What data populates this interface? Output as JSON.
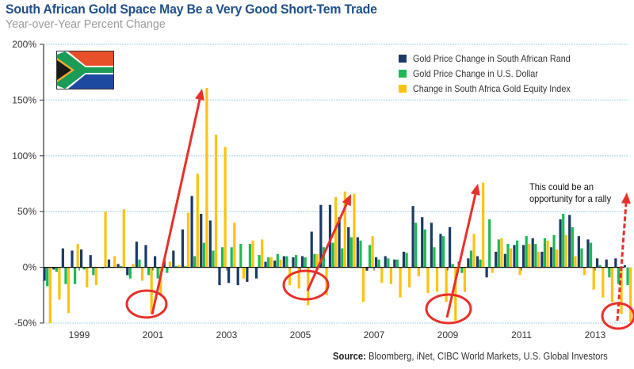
{
  "chart_data": {
    "type": "bar",
    "title": "South African Gold Space May Be a Very Good Short-Tem Trade",
    "subtitle": "Year-over-Year Percent Change",
    "xlabel": "",
    "ylabel": "",
    "ylim": [
      -50,
      200
    ],
    "yticks": [
      "200%",
      "150%",
      "100%",
      "50%",
      "0%",
      "-50%"
    ],
    "ytick_values": [
      200,
      150,
      100,
      50,
      0,
      -50
    ],
    "xticks": [
      "1999",
      "2001",
      "2003",
      "2005",
      "2007",
      "2009",
      "2011",
      "2013"
    ],
    "x_start": 1998.0,
    "periods_per_year": 4,
    "grid": true,
    "legend_position": "top-right",
    "series": [
      {
        "name": "Gold Price Change in South African Rand",
        "color": "#1b3a66",
        "values": [
          -12,
          -2,
          17,
          15,
          16,
          11,
          0,
          7,
          3,
          -7,
          23,
          20,
          10,
          7,
          15,
          34,
          64,
          48,
          42,
          -16,
          -14,
          -16,
          -13,
          -10,
          5,
          6,
          10,
          9,
          10,
          32,
          56,
          56,
          45,
          36,
          27,
          -3,
          9,
          10,
          7,
          14,
          55,
          45,
          40,
          30,
          36,
          5,
          8,
          10,
          -9,
          14,
          12,
          20,
          20,
          26,
          14,
          18,
          43,
          47,
          28,
          25,
          8,
          7,
          8,
          2
        ]
      },
      {
        "name": "Gold Price Change in U.S. Dollar",
        "color": "#1db954",
        "values": [
          -17,
          -4,
          -15,
          -15,
          -2,
          -7,
          -1,
          0,
          1,
          -10,
          7,
          -7,
          -10,
          -5,
          1,
          1,
          10,
          22,
          15,
          18,
          18,
          21,
          21,
          11,
          9,
          12,
          10,
          11,
          9,
          12,
          18,
          22,
          17,
          27,
          24,
          20,
          7,
          8,
          7,
          13,
          40,
          34,
          18,
          28,
          3,
          -5,
          15,
          7,
          43,
          25,
          21,
          24,
          28,
          21,
          26,
          29,
          48,
          36,
          17,
          22,
          2,
          -9,
          -15,
          -16
        ]
      },
      {
        "name": "Change in South Africa Gold Equity Index",
        "color": "#ffc20e",
        "values": [
          -50,
          -29,
          -41,
          21,
          -18,
          -16,
          50,
          10,
          52,
          3,
          -12,
          -42,
          -26,
          5,
          2,
          49,
          84,
          161,
          119,
          108,
          40,
          -10,
          24,
          25,
          9,
          7,
          -16,
          -19,
          -34,
          12,
          -25,
          63,
          68,
          66,
          -31,
          28,
          -14,
          -15,
          -27,
          -18,
          -8,
          -23,
          -22,
          -31,
          -48,
          -22,
          30,
          76,
          -5,
          26,
          17,
          -7,
          21,
          14,
          24,
          16,
          29,
          10,
          -7,
          -20,
          -27,
          -31,
          -42,
          -49
        ]
      }
    ],
    "annotations": [
      {
        "text_line1": "This could be an",
        "text_line2": "opportunity for a rally"
      }
    ],
    "source_label": "Source:",
    "source_text": "Bloomberg, iNet, CIBC World Markets, U.S. Global Investors"
  },
  "colors": {
    "title": "#1e4f8c",
    "grid": "#bfe3ef",
    "arrow": "#e8302a"
  }
}
